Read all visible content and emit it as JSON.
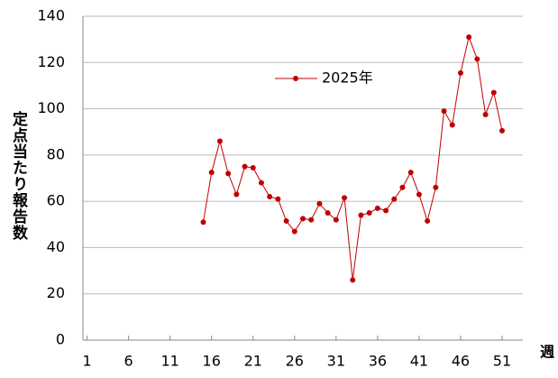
{
  "chart_data": {
    "type": "line",
    "y_label": "定点当たり報告数",
    "x_label": "週",
    "x": [
      15,
      16,
      17,
      18,
      19,
      20,
      21,
      22,
      23,
      24,
      25,
      26,
      27,
      28,
      29,
      30,
      31,
      32,
      33,
      34,
      35,
      36,
      37,
      38,
      39,
      40,
      41,
      42,
      43,
      44,
      45,
      46,
      47,
      48,
      49,
      50,
      51
    ],
    "series": [
      {
        "name": "2025年",
        "color": "#c00000",
        "values": [
          51,
          72.5,
          86,
          72,
          63,
          75,
          74.5,
          68,
          62,
          61,
          51.5,
          47,
          52.5,
          52,
          59,
          55,
          52,
          61.5,
          26,
          54,
          55,
          57,
          56,
          61,
          66,
          72.5,
          63,
          51.5,
          66,
          99,
          93,
          115.5,
          131,
          121.5,
          97.5,
          107,
          90.5
        ]
      }
    ],
    "xlim": [
      0.5,
      53.5
    ],
    "xticks": [
      1,
      6,
      11,
      16,
      21,
      26,
      31,
      36,
      41,
      46,
      51
    ],
    "ylim": [
      0,
      140
    ],
    "yticks": [
      0,
      20,
      40,
      60,
      80,
      100,
      120,
      140
    ],
    "grid": true
  }
}
